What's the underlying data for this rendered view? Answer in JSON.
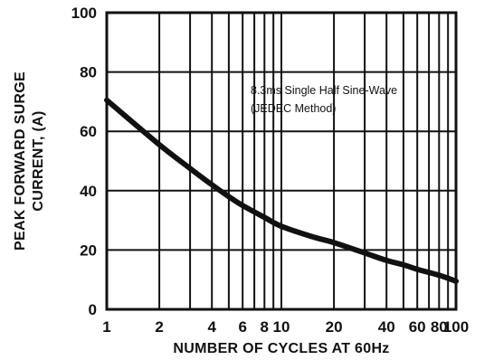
{
  "chart_data": {
    "type": "line",
    "title": "",
    "xlabel": "NUMBER OF CYCLES AT 60Hz",
    "ylabel_lines": [
      "PEAK FORWARD SURGE",
      "CURRENT, (A)"
    ],
    "x_scale": "log",
    "xlim": [
      1,
      100
    ],
    "ylim": [
      0,
      100
    ],
    "x_tick_labels": [
      "1",
      "2",
      "4",
      "6",
      "8",
      "10",
      "20",
      "40",
      "60",
      "80",
      "100"
    ],
    "x_tick_values": [
      1,
      2,
      4,
      6,
      8,
      10,
      20,
      40,
      60,
      80,
      100
    ],
    "y_ticks": [
      0,
      20,
      40,
      60,
      80,
      100
    ],
    "grid": true,
    "annotation_lines": [
      "8.3ms Single Half Sine-Wave",
      "(JEDEC Method)"
    ],
    "series": [
      {
        "x": [
          1,
          2,
          3,
          4,
          5,
          6,
          8,
          10,
          15,
          20,
          30,
          40,
          50,
          60,
          80,
          100
        ],
        "y": [
          70.5,
          55.5,
          47.5,
          42,
          38,
          35,
          31,
          28,
          24.5,
          22.5,
          19,
          16.5,
          15,
          13.5,
          11.5,
          9.5
        ]
      }
    ],
    "colors": {
      "line": "#111111",
      "grid": "#111111",
      "background": "#ffffff"
    }
  }
}
